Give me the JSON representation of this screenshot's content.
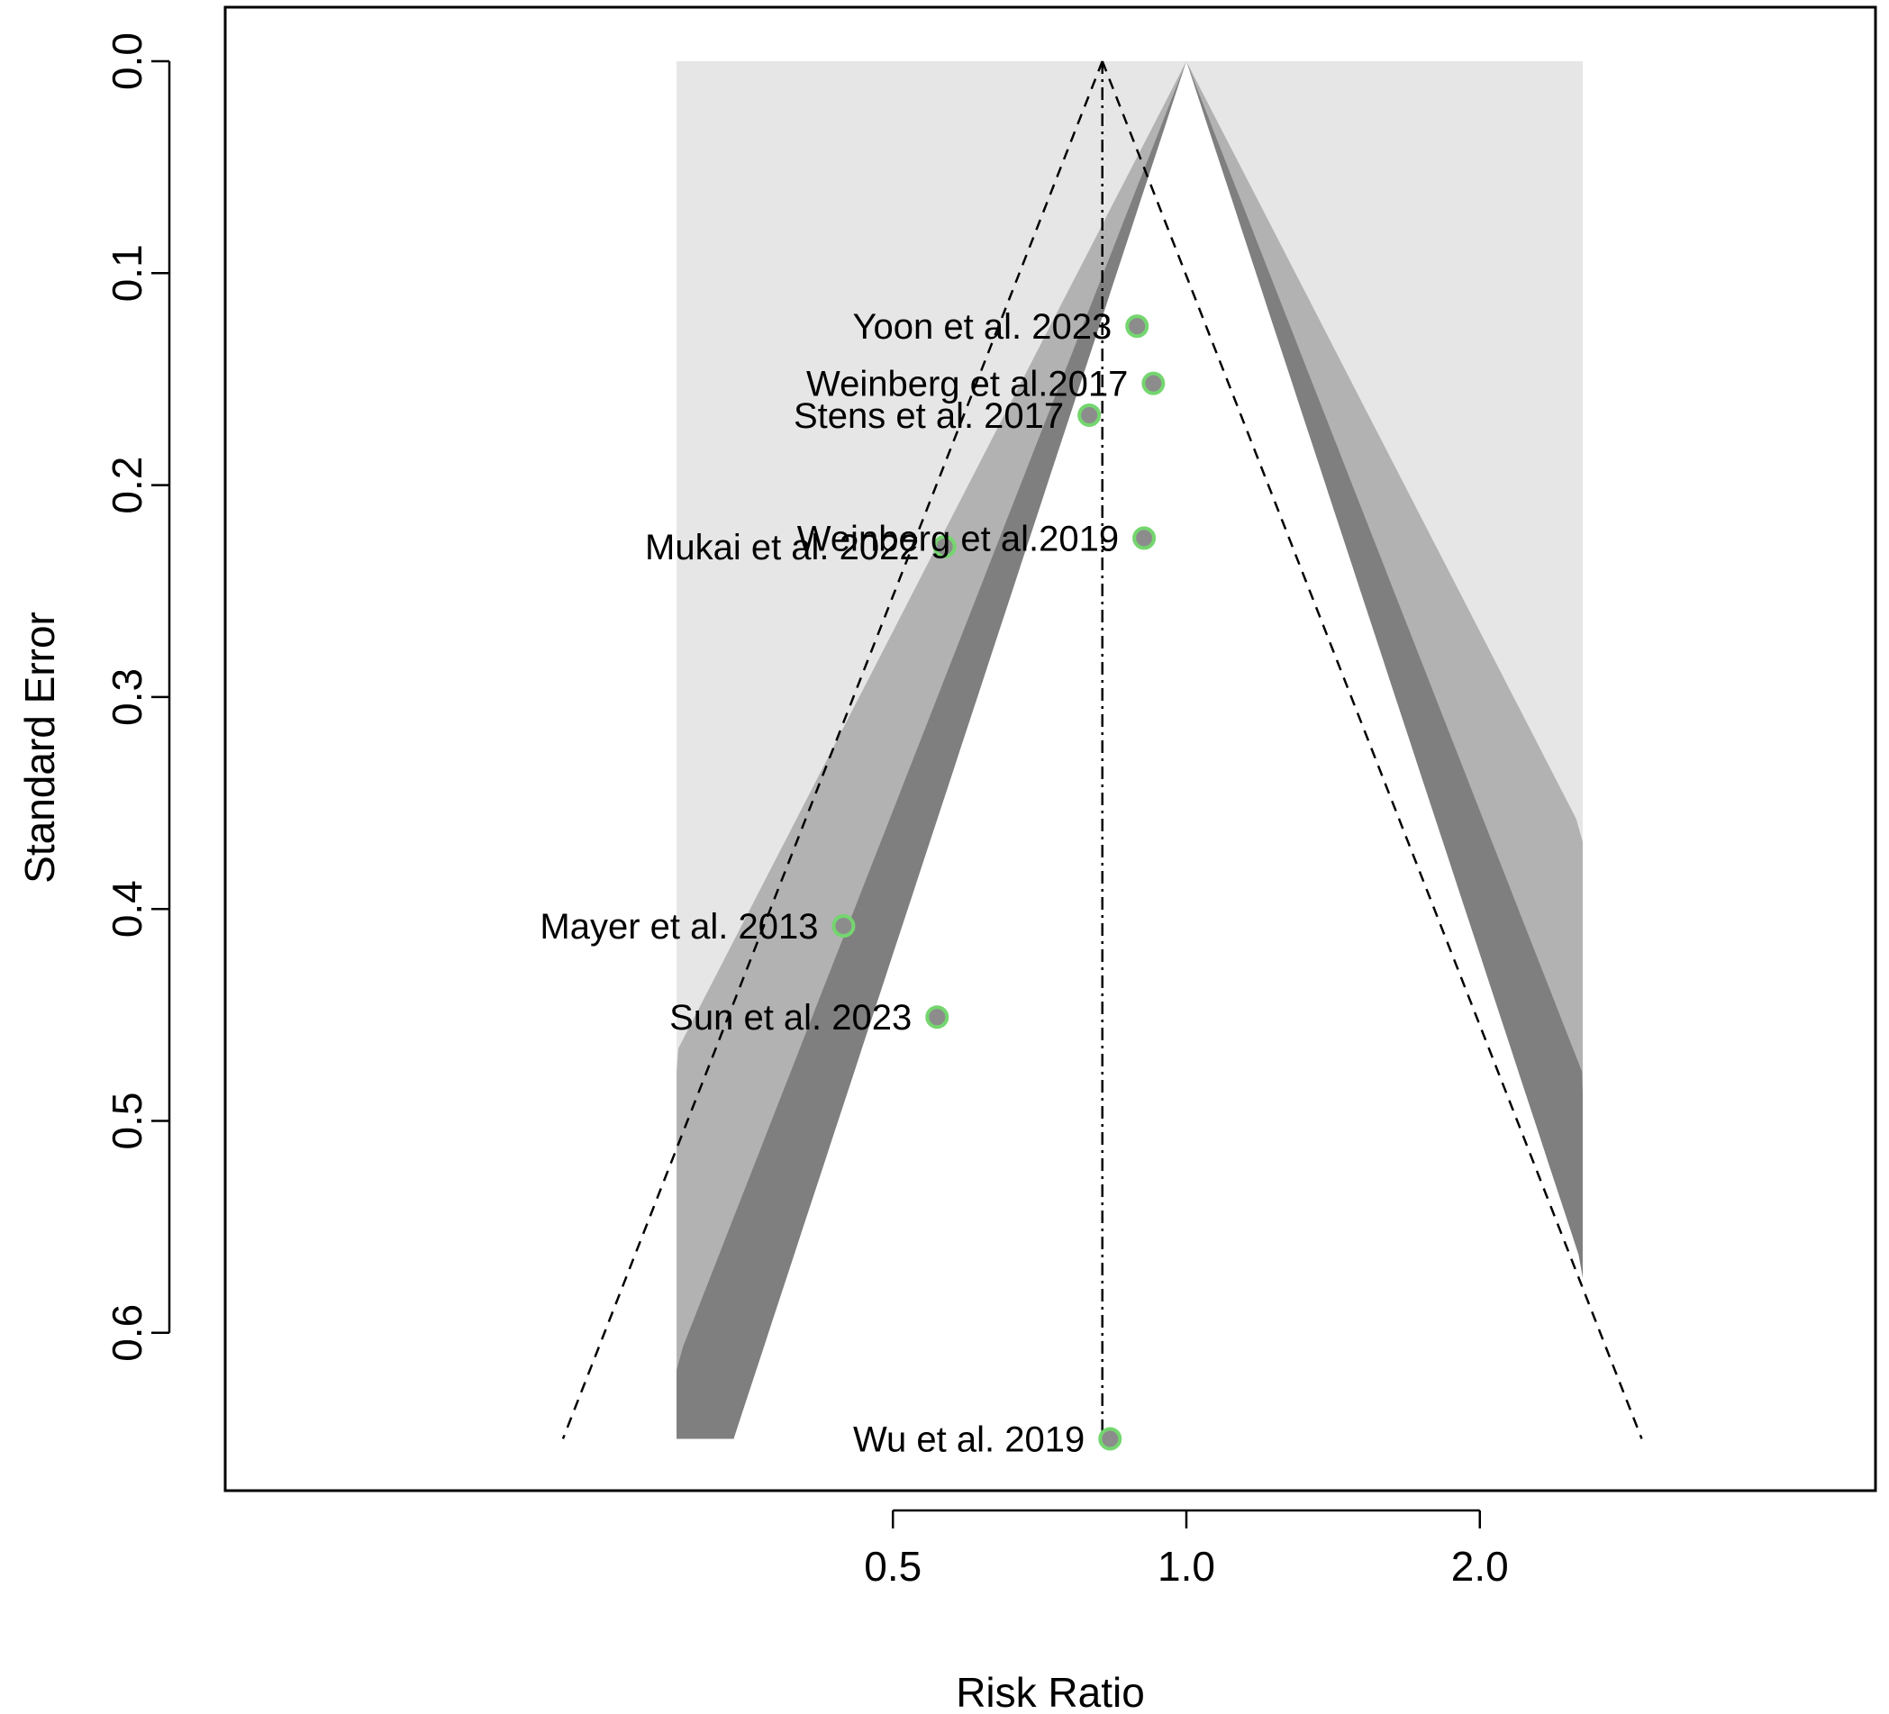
{
  "chart_data": {
    "type": "scatter",
    "subtype": "contour-enhanced funnel plot",
    "title": "",
    "xlabel": "Risk Ratio",
    "ylabel": "Standard Error",
    "x_scale": "log",
    "x_range": [
      0.3,
      2.55
    ],
    "x_ticks": [
      0.5,
      1.0,
      2.0
    ],
    "x_tick_labels": [
      "0.5",
      "1.0",
      "2.0"
    ],
    "y_range": [
      0.0,
      0.65
    ],
    "y_reversed": true,
    "y_ticks": [
      0.0,
      0.1,
      0.2,
      0.3,
      0.4,
      0.5,
      0.6
    ],
    "y_tick_labels": [
      "0.0",
      "0.1",
      "0.2",
      "0.3",
      "0.4",
      "0.5",
      "0.6"
    ],
    "grid": false,
    "pooled_estimate_rr": 0.82,
    "contour_reference_rr": 1.0,
    "contour_levels": [
      "p > 0.10",
      "0.10 > p > 0.05",
      "0.05 > p > 0.01",
      "p < 0.01"
    ],
    "colors": {
      "region_p_gt_010": "#ffffff",
      "region_p_010_005": "#7f7f7f",
      "region_p_005_001": "#b2b2b2",
      "region_p_lt_001": "#e6e6e6",
      "point_fill": "#8c8c8c",
      "point_stroke": "#74d66f"
    },
    "points": [
      {
        "label": "Yoon et al. 2023",
        "rr": 0.89,
        "se": 0.125
      },
      {
        "label": "Weinberg et al.2017",
        "rr": 0.925,
        "se": 0.152
      },
      {
        "label": "Stens et al. 2017",
        "rr": 0.795,
        "se": 0.167
      },
      {
        "label": "Weinberg et al.2019",
        "rr": 0.905,
        "se": 0.225
      },
      {
        "label": "Mukai et al. 2022",
        "rr": 0.565,
        "se": 0.229
      },
      {
        "label": "Mayer et al. 2013",
        "rr": 0.445,
        "se": 0.408
      },
      {
        "label": "Sun et al. 2023",
        "rr": 0.555,
        "se": 0.451
      },
      {
        "label": "Wu et al. 2019",
        "rr": 0.835,
        "se": 0.65
      }
    ]
  }
}
